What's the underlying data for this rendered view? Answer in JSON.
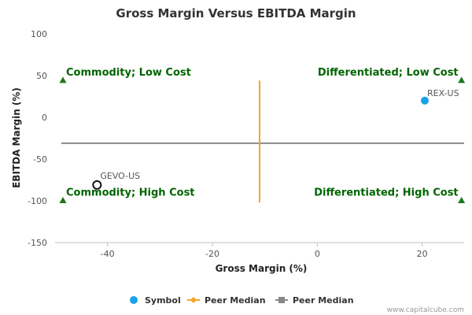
{
  "colors": {
    "quadrant_text": "#006400",
    "marker": "#1a7a1a",
    "symbol": "#1aa3e8",
    "peer_median_orange": "#f5a623",
    "peer_median_gray": "#888888",
    "open_point_stroke": "#111111"
  },
  "chart_data": {
    "type": "scatter",
    "title": "Gross Margin Versus EBITDA Margin",
    "xlabel": "Gross Margin (%)",
    "ylabel": "EBITDA Margin (%)",
    "xlim": [
      -50,
      28
    ],
    "ylim": [
      -150,
      100
    ],
    "x_ticks": [
      -40,
      -20,
      0,
      20
    ],
    "y_ticks": [
      100,
      50,
      0,
      -50,
      -100,
      -150
    ],
    "grid": false,
    "legend_position": "bottom",
    "points": [
      {
        "label": "REX-US",
        "x": 20.5,
        "y": 20,
        "style": "filled",
        "color_key": "symbol"
      },
      {
        "label": "GEVO-US",
        "x": -42,
        "y": -81,
        "style": "open",
        "color_key": "open_point_stroke"
      }
    ],
    "peer_median_x": -11,
    "peer_median_x_extent": [
      -102,
      44
    ],
    "peer_median_y": -31,
    "quadrants": [
      {
        "text": "Commodity; Low Cost",
        "marker_x": -48.5,
        "marker_y": 44,
        "anchor": "start",
        "label_y": 50
      },
      {
        "text": "Differentiated; Low Cost",
        "marker_x": 27.5,
        "marker_y": 44,
        "anchor": "end",
        "label_y": 50
      },
      {
        "text": "Commodity; High Cost",
        "marker_x": -48.5,
        "marker_y": -100,
        "anchor": "start",
        "label_y": -94
      },
      {
        "text": "Differentiated; High Cost",
        "marker_x": 27.5,
        "marker_y": -100,
        "anchor": "end",
        "label_y": -94
      }
    ],
    "legend": [
      {
        "name": "Symbol",
        "kind": "circle",
        "color_key": "symbol"
      },
      {
        "name": "Peer Median",
        "kind": "line-diamond",
        "color_key": "peer_median_orange"
      },
      {
        "name": "Peer Median",
        "kind": "line-square",
        "color_key": "peer_median_gray"
      }
    ]
  },
  "credit": "www.capitalcube.com"
}
